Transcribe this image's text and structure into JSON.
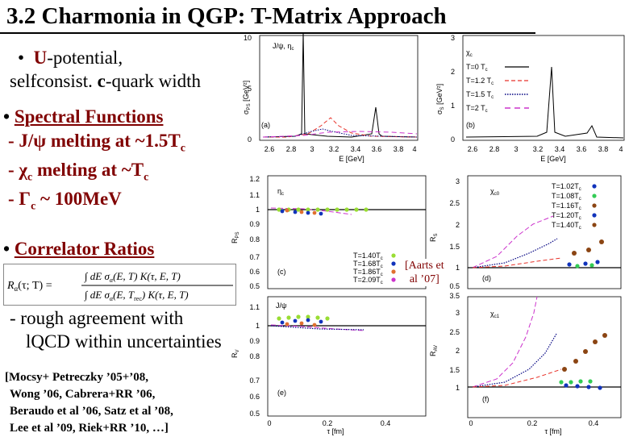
{
  "slide": {
    "title": "3.2 Charmonia in QGP: T-Matrix Approach",
    "bullet1_u": "U",
    "bullet1_rest": "-potential,",
    "bullet1_line2_a": "selfconsist. ",
    "bullet1_line2_c": "c",
    "bullet1_line2_b": "-quark width",
    "bullet2": "Spectral Functions",
    "sub1": "- J/ψ melting at ~1.5T",
    "sub1_sub": "c",
    "sub2_pre": "- ",
    "sub2_chi": "χ",
    "sub2_chi_sub": "c",
    "sub2_post": " melting at ~T",
    "sub2_sub": "c",
    "sub3_pre": "-  ",
    "sub3_gamma": "Γ",
    "sub3_gamma_sub": "c",
    "sub3_post": " ~ 100MeV",
    "bullet3": "Correlator Ratios",
    "agree1": "- rough agreement with",
    "agree2": "lQCD within uncertainties",
    "refs": [
      "[Mocsy+ Petreczky ’05+’08,",
      "Wong ’06, Cabrera+RR ’06,",
      "Beraudo et al ’06, Satz et al ’08,",
      "Lee et al ’09, Riek+RR ’10, …]"
    ],
    "aarts1": "[Aarts et",
    "aarts2": "al ’07]"
  },
  "formula": {
    "lhs": "R",
    "lhs_sub": "α",
    "lhs_args": "(τ; T) =",
    "num": "∫ dE σ",
    "num_sub": "α",
    "num_rest": "(E, T) K(τ, E, T)",
    "den": "∫ dE σ",
    "den_sub": "α",
    "den_rest": "(E, T",
    "den_rec": "rec",
    "den_end": ") K(τ, E, T)"
  },
  "figure": {
    "panel_a": {
      "label": "(a)",
      "tag": "J/ψ, η",
      "tag_sub": "c",
      "ylabel": "σ",
      "ylabel_sub": "PS",
      "ylabel_unit": " [GeV²]",
      "yticks": [
        "0",
        "5",
        "10"
      ],
      "xticks": [
        "2.6",
        "2.8",
        "3",
        "3.2",
        "3.4",
        "3.6",
        "3.8",
        "4"
      ],
      "xlabel": "E [GeV]"
    },
    "panel_b": {
      "label": "(b)",
      "ylabel": "σ",
      "ylabel_sub": "S",
      "ylabel_unit": " [GeV²]",
      "yticks": [
        "0",
        "1",
        "2",
        "3"
      ],
      "xticks": [
        "2.6",
        "2.8",
        "3",
        "3.2",
        "3.4",
        "3.6",
        "3.8",
        "4"
      ],
      "xlabel": "E [GeV]",
      "legend": [
        {
          "label": "χ",
          "label_sub": "c"
        },
        {
          "label": "T=0 T",
          "sub": "c",
          "color": "#000000",
          "dash": ""
        },
        {
          "label": "T=1.2 T",
          "sub": "c",
          "color": "#e8332a",
          "dash": "6,3"
        },
        {
          "label": "T=1.5 T",
          "sub": "c",
          "color": "#000080",
          "dash": "1.5,1.5"
        },
        {
          "label": "T=2 T",
          "sub": "c",
          "color": "#cc33cc",
          "dash": "7,5"
        }
      ]
    },
    "panel_c": {
      "label": "(c)",
      "tag": "η",
      "tag_sub": "c",
      "ylabel": "R",
      "ylabel_sub": "PS",
      "yticks": [
        "0.5",
        "0.6",
        "0.7",
        "0.8",
        "0.9",
        "1",
        "1.1",
        "1.2"
      ],
      "legend": [
        {
          "label": "T=1.40T",
          "sub": "c",
          "color": "#99dd33"
        },
        {
          "label": "T=1.68T",
          "sub": "c",
          "color": "#1133bb"
        },
        {
          "label": "T=1.86T",
          "sub": "c",
          "color": "#e07030"
        },
        {
          "label": "T=2.09T",
          "sub": "c",
          "color": "#cc33cc"
        }
      ]
    },
    "panel_d": {
      "label": "(d)",
      "tag": "χ",
      "tag_sub": "c0",
      "ylabel": "R",
      "ylabel_sub": "S",
      "yticks": [
        "0.5",
        "1",
        "1.5",
        "2",
        "2.5",
        "3"
      ],
      "legend": [
        {
          "label": "T=1.02T",
          "sub": "c",
          "color": "#1133bb"
        },
        {
          "label": "T=1.08T",
          "sub": "c",
          "color": "#33cc55"
        },
        {
          "label": "T=1.16T",
          "sub": "c",
          "color": "#8b4513"
        },
        {
          "label": "T=1.20T",
          "sub": "c",
          "color": "#1133bb"
        },
        {
          "label": "T=1.40T",
          "sub": "c",
          "color": "#8b4513"
        }
      ]
    },
    "panel_e": {
      "label": "(e)",
      "tag": "J/ψ",
      "ylabel": "R",
      "ylabel_sub": "V",
      "yticks": [
        "0.5",
        "0.6",
        "0.7",
        "0.8",
        "0.9",
        "1",
        "1.1"
      ],
      "xticks": [
        "0",
        "0.2",
        "0.4"
      ],
      "xlabel": "τ [fm]"
    },
    "panel_f": {
      "label": "(f)",
      "tag": "χ",
      "tag_sub": "c1",
      "ylabel": "R",
      "ylabel_sub": "AV",
      "yticks": [
        "1",
        "1.5",
        "2",
        "2.5",
        "3",
        "3.5"
      ],
      "xticks": [
        "0",
        "0.2",
        "0.4"
      ],
      "xlabel": "τ [fm]"
    }
  }
}
